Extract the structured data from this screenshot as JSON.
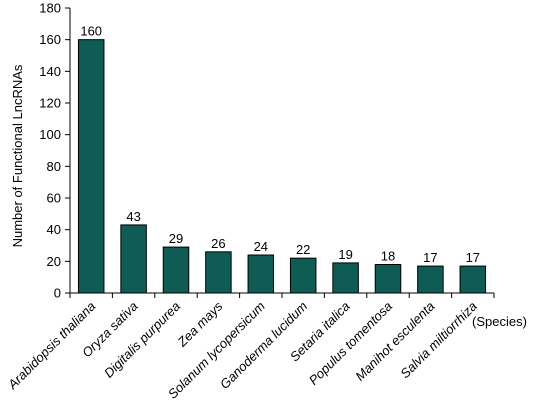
{
  "chart_data": {
    "type": "bar",
    "categories": [
      "Arabidopsis thaliana",
      "Oryza sativa",
      "Digitalis purpurea",
      "Zea mays",
      "Solanum lycopersicum",
      "Ganoderma lucidum",
      "Setaria italica",
      "Populus tomentosa",
      "Manihot esculenta",
      "Salvia miltiorrhiza"
    ],
    "values": [
      160,
      43,
      29,
      26,
      24,
      22,
      19,
      18,
      17,
      17
    ],
    "data_labels": [
      "160",
      "43",
      "29",
      "26",
      "24",
      "22",
      "19",
      "18",
      "17",
      "17"
    ],
    "title": "",
    "xlabel": "(Species)",
    "ylabel": "Number of Functional LncRNAs",
    "ylim": [
      0,
      180
    ],
    "yticks": [
      0,
      20,
      40,
      60,
      80,
      100,
      120,
      140,
      160,
      180
    ],
    "ytick_labels": [
      "0",
      "20",
      "40",
      "60",
      "80",
      "100",
      "120",
      "140",
      "160",
      "180"
    ],
    "grid": false,
    "legend": "none",
    "bar_color": "#0f5c55",
    "bar_edge_color": "#000000"
  }
}
